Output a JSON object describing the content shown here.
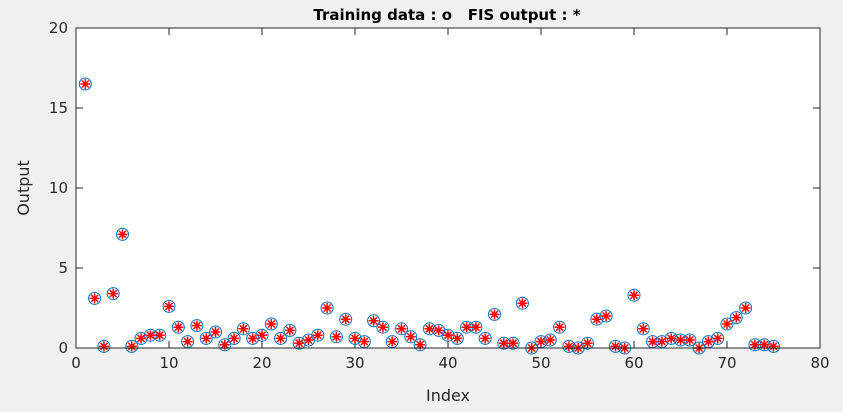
{
  "chart_data": {
    "type": "scatter",
    "title": "Training data : o   FIS output : *",
    "xlabel": "Index",
    "ylabel": "Output",
    "xlim": [
      0,
      80
    ],
    "ylim": [
      0,
      20
    ],
    "xticks": [
      0,
      10,
      20,
      30,
      40,
      50,
      60,
      70,
      80
    ],
    "yticks": [
      0,
      5,
      10,
      15,
      20
    ],
    "grid": false,
    "series": [
      {
        "marker": "o",
        "color": "#0072bd",
        "x": [
          1,
          2,
          3,
          4,
          5,
          6,
          7,
          8,
          9,
          10,
          11,
          12,
          13,
          14,
          15,
          16,
          17,
          18,
          19,
          20,
          21,
          22,
          23,
          24,
          25,
          26,
          27,
          28,
          29,
          30,
          31,
          32,
          33,
          34,
          35,
          36,
          37,
          38,
          39,
          40,
          41,
          42,
          43,
          44,
          45,
          46,
          47,
          48,
          49,
          50,
          51,
          52,
          53,
          54,
          55,
          56,
          57,
          58,
          59,
          60,
          61,
          62,
          63,
          64,
          65,
          66,
          67,
          68,
          69,
          70,
          71,
          72,
          73,
          74,
          75
        ],
        "y": [
          16.5,
          3.1,
          0.1,
          3.4,
          7.1,
          0.1,
          0.6,
          0.8,
          0.8,
          2.6,
          1.3,
          0.4,
          1.4,
          0.6,
          1.0,
          0.2,
          0.6,
          1.2,
          0.6,
          0.8,
          1.5,
          0.6,
          1.1,
          0.3,
          0.5,
          0.8,
          2.5,
          0.7,
          1.8,
          0.6,
          0.4,
          1.7,
          1.3,
          0.4,
          1.2,
          0.7,
          0.2,
          1.2,
          1.1,
          0.8,
          0.6,
          1.3,
          1.3,
          0.6,
          2.1,
          0.3,
          0.3,
          2.8,
          0.0,
          0.4,
          0.5,
          1.3,
          0.1,
          0.0,
          0.3,
          1.8,
          2.0,
          0.1,
          0.0,
          3.3,
          1.2,
          0.4,
          0.4,
          0.6,
          0.5,
          0.5,
          0.0,
          0.4,
          0.6,
          1.5,
          1.9,
          2.5,
          0.2,
          0.2,
          0.1
        ]
      },
      {
        "marker": "*",
        "color": "#ff0000",
        "x": [
          1,
          2,
          3,
          4,
          5,
          6,
          7,
          8,
          9,
          10,
          11,
          12,
          13,
          14,
          15,
          16,
          17,
          18,
          19,
          20,
          21,
          22,
          23,
          24,
          25,
          26,
          27,
          28,
          29,
          30,
          31,
          32,
          33,
          34,
          35,
          36,
          37,
          38,
          39,
          40,
          41,
          42,
          43,
          44,
          45,
          46,
          47,
          48,
          49,
          50,
          51,
          52,
          53,
          54,
          55,
          56,
          57,
          58,
          59,
          60,
          61,
          62,
          63,
          64,
          65,
          66,
          67,
          68,
          69,
          70,
          71,
          72,
          73,
          74,
          75
        ],
        "y": [
          16.5,
          3.1,
          0.1,
          3.4,
          7.1,
          0.1,
          0.6,
          0.8,
          0.8,
          2.6,
          1.3,
          0.4,
          1.4,
          0.6,
          1.0,
          0.2,
          0.6,
          1.2,
          0.6,
          0.8,
          1.5,
          0.6,
          1.1,
          0.3,
          0.5,
          0.8,
          2.5,
          0.7,
          1.8,
          0.6,
          0.4,
          1.7,
          1.3,
          0.4,
          1.2,
          0.7,
          0.2,
          1.2,
          1.1,
          0.8,
          0.6,
          1.3,
          1.3,
          0.6,
          2.1,
          0.3,
          0.3,
          2.8,
          0.0,
          0.4,
          0.5,
          1.3,
          0.1,
          0.0,
          0.3,
          1.8,
          2.0,
          0.1,
          0.0,
          3.3,
          1.2,
          0.4,
          0.4,
          0.6,
          0.5,
          0.5,
          0.0,
          0.4,
          0.6,
          1.5,
          1.9,
          2.5,
          0.2,
          0.2,
          0.1
        ]
      }
    ]
  }
}
